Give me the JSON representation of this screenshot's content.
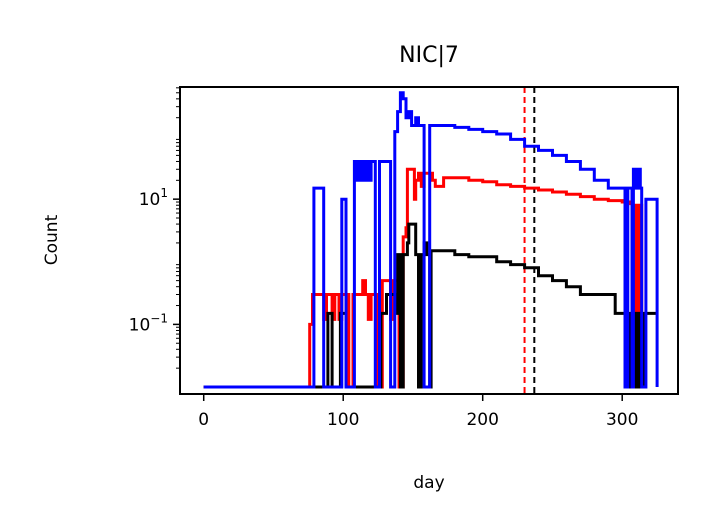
{
  "chart_data": {
    "type": "line",
    "title": "NIC|7",
    "xlabel": "day",
    "ylabel": "Count",
    "xlim": [
      -17,
      340
    ],
    "ylim": [
      0.01,
      800
    ],
    "yscale": "log",
    "grid": false,
    "legend": "none",
    "x_ticks": [
      0,
      100,
      200,
      300
    ],
    "x_tick_labels": [
      "0",
      "100",
      "200",
      "300"
    ],
    "y_ticks": [
      {
        "value": 0.1,
        "base": "10",
        "exp": "−1"
      },
      {
        "value": 10,
        "base": "10",
        "exp": "1"
      }
    ],
    "vlines": [
      {
        "x": 230,
        "color": "#ff0000",
        "style": "dashed"
      },
      {
        "x": 237,
        "color": "#000000",
        "style": "dashed"
      }
    ],
    "series": [
      {
        "color": "#ff0000",
        "points": [
          [
            0,
            0.01
          ],
          [
            75,
            0.01
          ],
          [
            76,
            0.1
          ],
          [
            78,
            0.3
          ],
          [
            84,
            0.3
          ],
          [
            86,
            0.12
          ],
          [
            88,
            0.3
          ],
          [
            92,
            0.12
          ],
          [
            94,
            0.3
          ],
          [
            97,
            0.12
          ],
          [
            99,
            0.3
          ],
          [
            102,
            0.3
          ],
          [
            104,
            0.01
          ],
          [
            106,
            0.01
          ],
          [
            107,
            0.3
          ],
          [
            112,
            0.3
          ],
          [
            114,
            0.5
          ],
          [
            116,
            0.3
          ],
          [
            118,
            0.12
          ],
          [
            120,
            0.3
          ],
          [
            122,
            0.3
          ],
          [
            124,
            0.01
          ],
          [
            126,
            0.01
          ],
          [
            128,
            0.5
          ],
          [
            132,
            0.5
          ],
          [
            134,
            0.12
          ],
          [
            136,
            0.5
          ],
          [
            139,
            0.5
          ],
          [
            140,
            0.01
          ],
          [
            142,
            0.01
          ],
          [
            143,
            2.5
          ],
          [
            145,
            3.5
          ],
          [
            146,
            30
          ],
          [
            149,
            30
          ],
          [
            151,
            10
          ],
          [
            152,
            20
          ],
          [
            154,
            26
          ],
          [
            156,
            16
          ],
          [
            158,
            26
          ],
          [
            162,
            26
          ],
          [
            164,
            20
          ],
          [
            166,
            16
          ],
          [
            170,
            16
          ],
          [
            172,
            22
          ],
          [
            180,
            22
          ],
          [
            190,
            20
          ],
          [
            200,
            19
          ],
          [
            210,
            17
          ],
          [
            220,
            16
          ],
          [
            230,
            15
          ],
          [
            240,
            14
          ],
          [
            250,
            13
          ],
          [
            260,
            12
          ],
          [
            270,
            11
          ],
          [
            280,
            10
          ],
          [
            290,
            9.5
          ],
          [
            300,
            9
          ],
          [
            305,
            8.5
          ],
          [
            307,
            0.01
          ],
          [
            309,
            8
          ],
          [
            311,
            0.01
          ],
          [
            313,
            8
          ],
          [
            314,
            0.01
          ],
          [
            317,
            0.01
          ]
        ]
      },
      {
        "color": "#000000",
        "points": [
          [
            0,
            0.01
          ],
          [
            88,
            0.01
          ],
          [
            89,
            0.15
          ],
          [
            91,
            0.15
          ],
          [
            92,
            0.01
          ],
          [
            96,
            0.01
          ],
          [
            98,
            0.15
          ],
          [
            100,
            0.15
          ],
          [
            102,
            0.01
          ],
          [
            126,
            0.01
          ],
          [
            127,
            0.15
          ],
          [
            130,
            0.15
          ],
          [
            131,
            0.3
          ],
          [
            136,
            0.3
          ],
          [
            138,
            0.15
          ],
          [
            139,
            1.3
          ],
          [
            141,
            0.01
          ],
          [
            143,
            1.3
          ],
          [
            146,
            2
          ],
          [
            147,
            4
          ],
          [
            150,
            4
          ],
          [
            152,
            1.3
          ],
          [
            154,
            0.01
          ],
          [
            156,
            1.3
          ],
          [
            158,
            2
          ],
          [
            160,
            1.3
          ],
          [
            162,
            0.01
          ],
          [
            163,
            1.5
          ],
          [
            170,
            1.5
          ],
          [
            180,
            1.3
          ],
          [
            190,
            1.2
          ],
          [
            200,
            1.2
          ],
          [
            210,
            1.0
          ],
          [
            220,
            0.9
          ],
          [
            230,
            0.8
          ],
          [
            240,
            0.6
          ],
          [
            250,
            0.5
          ],
          [
            260,
            0.4
          ],
          [
            270,
            0.3
          ],
          [
            280,
            0.3
          ],
          [
            290,
            0.3
          ],
          [
            295,
            0.15
          ],
          [
            300,
            0.15
          ],
          [
            305,
            0.01
          ],
          [
            307,
            0.15
          ],
          [
            309,
            0.01
          ],
          [
            311,
            0.15
          ],
          [
            313,
            0.01
          ],
          [
            316,
            0.15
          ],
          [
            325,
            0.15
          ]
        ]
      },
      {
        "color": "#0000ff",
        "points": [
          [
            0,
            0.01
          ],
          [
            77,
            0.01
          ],
          [
            79,
            15
          ],
          [
            84,
            15
          ],
          [
            86,
            0.01
          ],
          [
            97,
            0.01
          ],
          [
            99,
            10
          ],
          [
            100,
            10
          ],
          [
            102,
            0.01
          ],
          [
            106,
            0.01
          ],
          [
            108,
            40
          ],
          [
            110,
            20
          ],
          [
            112,
            40
          ],
          [
            114,
            20
          ],
          [
            116,
            40
          ],
          [
            118,
            20
          ],
          [
            120,
            40
          ],
          [
            121,
            40
          ],
          [
            123,
            0.01
          ],
          [
            125,
            0.01
          ],
          [
            126,
            40
          ],
          [
            132,
            40
          ],
          [
            134,
            0.01
          ],
          [
            136,
            0.01
          ],
          [
            137,
            120
          ],
          [
            139,
            250
          ],
          [
            141,
            500
          ],
          [
            143,
            400
          ],
          [
            145,
            200
          ],
          [
            147,
            250
          ],
          [
            149,
            150
          ],
          [
            152,
            200
          ],
          [
            154,
            150
          ],
          [
            156,
            150
          ],
          [
            158,
            0.01
          ],
          [
            160,
            0.01
          ],
          [
            162,
            150
          ],
          [
            170,
            150
          ],
          [
            180,
            140
          ],
          [
            190,
            130
          ],
          [
            200,
            120
          ],
          [
            210,
            110
          ],
          [
            220,
            90
          ],
          [
            230,
            70
          ],
          [
            240,
            60
          ],
          [
            250,
            50
          ],
          [
            260,
            40
          ],
          [
            270,
            30
          ],
          [
            280,
            20
          ],
          [
            290,
            15
          ],
          [
            300,
            15
          ],
          [
            302,
            0.01
          ],
          [
            304,
            15
          ],
          [
            305,
            15
          ],
          [
            307,
            0.01
          ],
          [
            308,
            30
          ],
          [
            310,
            15
          ],
          [
            312,
            30
          ],
          [
            313,
            15
          ],
          [
            314,
            0.01
          ],
          [
            316,
            0.01
          ],
          [
            317,
            10
          ],
          [
            324,
            10
          ],
          [
            325,
            0.01
          ]
        ]
      }
    ]
  }
}
